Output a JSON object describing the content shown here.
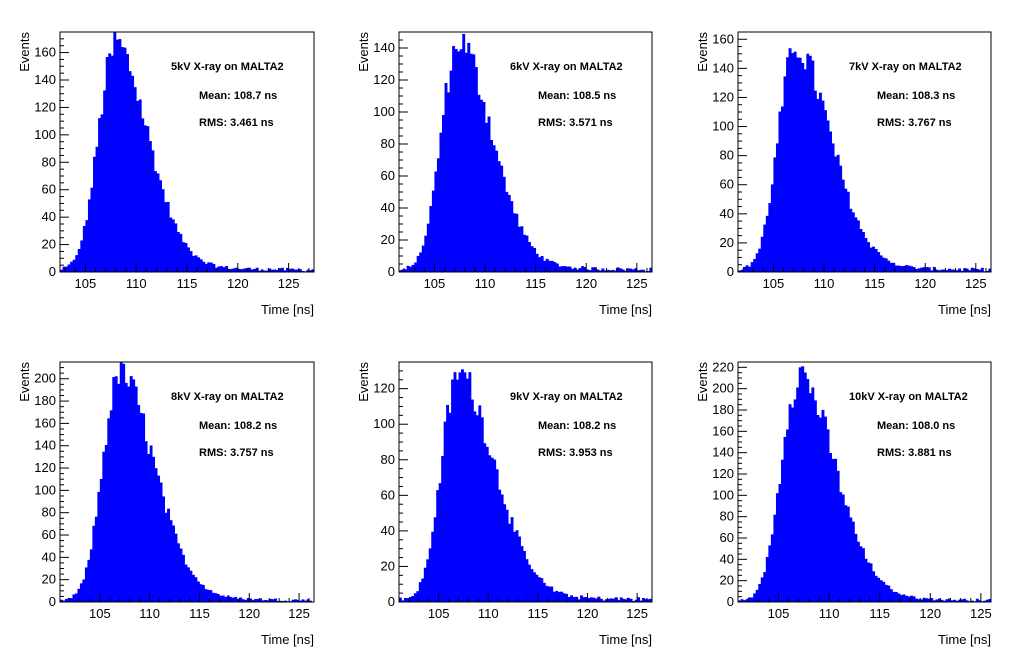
{
  "chart_data": [
    {
      "type": "bar",
      "title": "5kV X-ray on MALTA2",
      "mean_text": "Mean: 108.7 ns",
      "rms_text": "RMS: 3.461 ns",
      "xlabel": "Time [ns]",
      "ylabel": "Events",
      "xlim": [
        102.5,
        127.5
      ],
      "ylim": [
        0,
        175
      ],
      "xticks": [
        105,
        110,
        115,
        120,
        125
      ],
      "yticks": [
        0,
        20,
        40,
        60,
        80,
        100,
        120,
        140,
        160
      ],
      "peak_x": 107.8,
      "peak_y": 170,
      "mean": 108.7,
      "rms": 3.461,
      "color": "#0000ff"
    },
    {
      "type": "bar",
      "title": "6kV X-ray on MALTA2",
      "mean_text": "Mean: 108.5 ns",
      "rms_text": "RMS: 3.571 ns",
      "xlabel": "Time [ns]",
      "ylabel": "Events",
      "xlim": [
        101.5,
        126.5
      ],
      "ylim": [
        0,
        150
      ],
      "xticks": [
        105,
        110,
        115,
        120,
        125
      ],
      "yticks": [
        0,
        20,
        40,
        60,
        80,
        100,
        120,
        140
      ],
      "peak_x": 107.2,
      "peak_y": 147,
      "mean": 108.5,
      "rms": 3.571,
      "color": "#0000ff"
    },
    {
      "type": "bar",
      "title": "7kV X-ray on MALTA2",
      "mean_text": "Mean: 108.3 ns",
      "rms_text": "RMS: 3.767 ns",
      "xlabel": "Time [ns]",
      "ylabel": "Events",
      "xlim": [
        101.5,
        126.5
      ],
      "ylim": [
        0,
        165
      ],
      "xticks": [
        105,
        110,
        115,
        120,
        125
      ],
      "yticks": [
        0,
        20,
        40,
        60,
        80,
        100,
        120,
        140,
        160
      ],
      "peak_x": 107.0,
      "peak_y": 158,
      "mean": 108.3,
      "rms": 3.767,
      "color": "#0000ff"
    },
    {
      "type": "bar",
      "title": "8kV X-ray on MALTA2",
      "mean_text": "Mean: 108.2 ns",
      "rms_text": "RMS: 3.757 ns",
      "xlabel": "Time [ns]",
      "ylabel": "Events",
      "xlim": [
        101,
        126.5
      ],
      "ylim": [
        0,
        215
      ],
      "xticks": [
        105,
        110,
        115,
        120,
        125
      ],
      "yticks": [
        0,
        20,
        40,
        60,
        80,
        100,
        120,
        140,
        160,
        180,
        200
      ],
      "peak_x": 106.8,
      "peak_y": 210,
      "mean": 108.2,
      "rms": 3.757,
      "color": "#0000ff"
    },
    {
      "type": "bar",
      "title": "9kV X-ray on MALTA2",
      "mean_text": "Mean: 108.2 ns",
      "rms_text": "RMS: 3.953 ns",
      "xlabel": "Time [ns]",
      "ylabel": "Events",
      "xlim": [
        101,
        126.5
      ],
      "ylim": [
        0,
        135
      ],
      "xticks": [
        105,
        110,
        115,
        120,
        125
      ],
      "yticks": [
        0,
        20,
        40,
        60,
        80,
        100,
        120
      ],
      "peak_x": 106.8,
      "peak_y": 131,
      "mean": 108.2,
      "rms": 3.953,
      "color": "#0000ff"
    },
    {
      "type": "bar",
      "title": "10kV X-ray on MALTA2",
      "mean_text": "Mean: 108.0 ns",
      "rms_text": "RMS: 3.881 ns",
      "xlabel": "Time [ns]",
      "ylabel": "Events",
      "xlim": [
        101,
        126
      ],
      "ylim": [
        0,
        225
      ],
      "xticks": [
        105,
        110,
        115,
        120,
        125
      ],
      "yticks": [
        0,
        20,
        40,
        60,
        80,
        100,
        120,
        140,
        160,
        180,
        200,
        220
      ],
      "peak_x": 106.8,
      "peak_y": 219,
      "mean": 108.0,
      "rms": 3.881,
      "color": "#0000ff"
    }
  ]
}
